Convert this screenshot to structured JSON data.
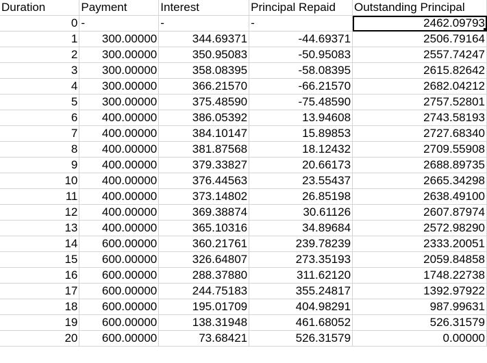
{
  "headers": [
    "Duration",
    "Payment",
    "Interest",
    "Principal Repaid",
    "Outstanding Principal"
  ],
  "rows": [
    [
      "0",
      "-",
      "-",
      "-",
      "2462.09793"
    ],
    [
      "1",
      "300.00000",
      "344.69371",
      "-44.69371",
      "2506.79164"
    ],
    [
      "2",
      "300.00000",
      "350.95083",
      "-50.95083",
      "2557.74247"
    ],
    [
      "3",
      "300.00000",
      "358.08395",
      "-58.08395",
      "2615.82642"
    ],
    [
      "4",
      "300.00000",
      "366.21570",
      "-66.21570",
      "2682.04212"
    ],
    [
      "5",
      "300.00000",
      "375.48590",
      "-75.48590",
      "2757.52801"
    ],
    [
      "6",
      "400.00000",
      "386.05392",
      "13.94608",
      "2743.58193"
    ],
    [
      "7",
      "400.00000",
      "384.10147",
      "15.89853",
      "2727.68340"
    ],
    [
      "8",
      "400.00000",
      "381.87568",
      "18.12432",
      "2709.55908"
    ],
    [
      "9",
      "400.00000",
      "379.33827",
      "20.66173",
      "2688.89735"
    ],
    [
      "10",
      "400.00000",
      "376.44563",
      "23.55437",
      "2665.34298"
    ],
    [
      "11",
      "400.00000",
      "373.14802",
      "26.85198",
      "2638.49100"
    ],
    [
      "12",
      "400.00000",
      "369.38874",
      "30.61126",
      "2607.87974"
    ],
    [
      "13",
      "400.00000",
      "365.10316",
      "34.89684",
      "2572.98290"
    ],
    [
      "14",
      "600.00000",
      "360.21761",
      "239.78239",
      "2333.20051"
    ],
    [
      "15",
      "600.00000",
      "326.64807",
      "273.35193",
      "2059.84858"
    ],
    [
      "16",
      "600.00000",
      "288.37880",
      "311.62120",
      "1748.22738"
    ],
    [
      "17",
      "600.00000",
      "244.75183",
      "355.24817",
      "1392.97922"
    ],
    [
      "18",
      "600.00000",
      "195.01709",
      "404.98291",
      "987.99631"
    ],
    [
      "19",
      "600.00000",
      "138.31948",
      "461.68052",
      "526.31579"
    ],
    [
      "20",
      "600.00000",
      "73.68421",
      "526.31579",
      "0.00000"
    ]
  ]
}
